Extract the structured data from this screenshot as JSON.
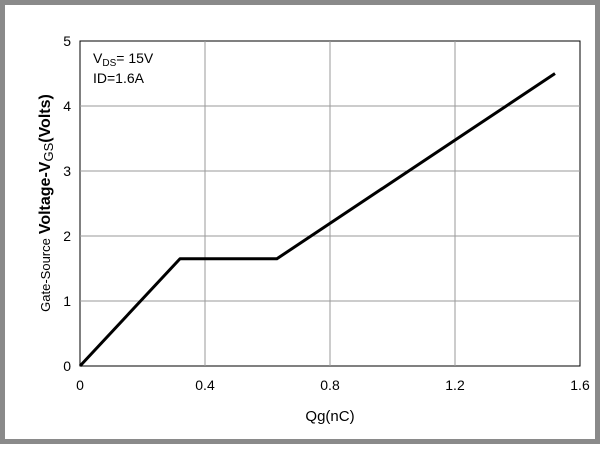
{
  "chart_data": {
    "type": "line",
    "title": "",
    "xlabel": "Qg(nC)",
    "ylabel": {
      "prefix": "Gate-Source",
      "main": "Voltage-V",
      "subscript": "GS",
      "suffix": "(Volts)"
    },
    "xlim": [
      0,
      1.6
    ],
    "ylim": [
      0,
      5
    ],
    "x_ticks": [
      0,
      0.4,
      0.8,
      1.2,
      1.6
    ],
    "x_tick_labels": [
      "0",
      "0.4",
      "0.8",
      "1.2",
      "1.6"
    ],
    "y_ticks": [
      0,
      1,
      2,
      3,
      4,
      5
    ],
    "y_tick_labels": [
      "0",
      "1",
      "2",
      "3",
      "4",
      "5"
    ],
    "grid": true,
    "series": [
      {
        "x": [
          0,
          0.32,
          0.63,
          1.52
        ],
        "y": [
          0,
          1.65,
          1.65,
          4.5
        ],
        "color": "#000000"
      }
    ],
    "annotations": {
      "vds": {
        "main": "V",
        "sub": "DS",
        "rest": "= 15V"
      },
      "id": "ID=1.6A"
    }
  }
}
